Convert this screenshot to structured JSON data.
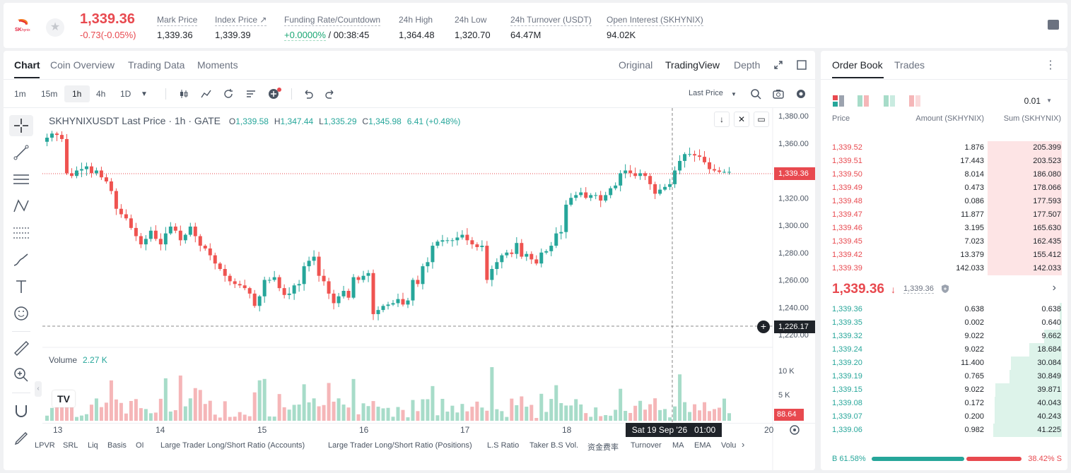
{
  "header": {
    "last_price": "1,339.36",
    "change": "-0.73(-0.05%)",
    "stats": [
      {
        "label": "Mark Price",
        "value": "1,339.36"
      },
      {
        "label": "Index Price ↗",
        "value": "1,339.39"
      },
      {
        "label": "Funding Rate/Countdown",
        "value_green": "+0.0000%",
        "value": " / 00:38:45"
      },
      {
        "label": "24h High",
        "value": "1,364.48"
      },
      {
        "label": "24h Low",
        "value": "1,320.70"
      },
      {
        "label": "24h Turnover (USDT)",
        "value": "64.47M"
      },
      {
        "label": "Open Interest (SKHYNIX)",
        "value": "94.02K"
      }
    ]
  },
  "chart_tabs": [
    "Chart",
    "Coin Overview",
    "Trading Data",
    "Moments"
  ],
  "view_tabs": [
    "Original",
    "TradingView",
    "Depth"
  ],
  "timeframes": [
    "1m",
    "15m",
    "1h",
    "4h",
    "1D"
  ],
  "last_price_select": "Last Price",
  "legend": {
    "title": "SKHYNIXUSDT Last Price · 1h · GATE",
    "o_label": "O",
    "o": "1,339.58",
    "h_label": "H",
    "h": "1,347.44",
    "l_label": "L",
    "l": "1,335.29",
    "c_label": "C",
    "c": "1,345.98",
    "chg": "6.41 (+0.48%)"
  },
  "volume": {
    "label": "Volume",
    "value": "2.27 K",
    "tag": "88.64",
    "ticks": [
      "10 K",
      "5 K"
    ]
  },
  "price_axis": [
    "1,380.00",
    "1,360.00",
    "1,340.00",
    "1,320.00",
    "1,300.00",
    "1,280.00",
    "1,260.00",
    "1,240.00",
    "1,220.00"
  ],
  "price_tag": "1,339.36",
  "cross_tag": "1,226.17",
  "x_axis": [
    "13",
    "14",
    "15",
    "16",
    "17",
    "18",
    "20"
  ],
  "x_tooltip": "Sat 19 Sep '26   01:00",
  "indicators": [
    "LPVR",
    "SRL",
    "Liq",
    "Basis",
    "OI",
    "Large Trader Long/Short Ratio (Accounts)",
    "Large Trader Long/Short Ratio (Positions)",
    "L.S Ratio",
    "Taker B.S Vol.",
    "资金费率",
    "Turnover",
    "MA",
    "EMA",
    "Volu"
  ],
  "book_tabs": [
    "Order Book",
    "Trades"
  ],
  "book": {
    "precision": "0.01",
    "cols": [
      "Price",
      "Amount (SKHYNIX)",
      "Sum (SKHYNIX)"
    ],
    "asks": [
      [
        "1,339.52",
        "1.876",
        "205.399"
      ],
      [
        "1,339.51",
        "17.443",
        "203.523"
      ],
      [
        "1,339.50",
        "8.014",
        "186.080"
      ],
      [
        "1,339.49",
        "0.473",
        "178.066"
      ],
      [
        "1,339.48",
        "0.086",
        "177.593"
      ],
      [
        "1,339.47",
        "11.877",
        "177.507"
      ],
      [
        "1,339.46",
        "3.195",
        "165.630"
      ],
      [
        "1,339.45",
        "7.023",
        "162.435"
      ],
      [
        "1,339.42",
        "13.379",
        "155.412"
      ],
      [
        "1,339.39",
        "142.033",
        "142.033"
      ]
    ],
    "mid": "1,339.36",
    "mid_arrow": "↓",
    "mark": "1,339.36",
    "bids": [
      [
        "1,339.36",
        "0.638",
        "0.638"
      ],
      [
        "1,339.35",
        "0.002",
        "0.640"
      ],
      [
        "1,339.32",
        "9.022",
        "9.662"
      ],
      [
        "1,339.24",
        "9.022",
        "18.684"
      ],
      [
        "1,339.20",
        "11.400",
        "30.084"
      ],
      [
        "1,339.19",
        "0.765",
        "30.849"
      ],
      [
        "1,339.15",
        "9.022",
        "39.871"
      ],
      [
        "1,339.08",
        "0.172",
        "40.043"
      ],
      [
        "1,339.07",
        "0.200",
        "40.243"
      ],
      [
        "1,339.06",
        "0.982",
        "41.225"
      ]
    ],
    "buy": "B 61.58%",
    "sell": "38.42% S",
    "buy_ratio": 0.6158
  },
  "chart_data": {
    "type": "candlestick",
    "symbol": "SKHYNIXUSDT",
    "interval": "1h",
    "ylim": [
      1220,
      1380
    ],
    "up_color": "#26a69a",
    "down_color": "#ef5350",
    "closes": [
      1364,
      1367,
      1366,
      1363,
      1338,
      1336,
      1340,
      1341,
      1343,
      1338,
      1340,
      1335,
      1332,
      1325,
      1312,
      1308,
      1305,
      1298,
      1292,
      1286,
      1290,
      1296,
      1290,
      1286,
      1294,
      1299,
      1296,
      1289,
      1293,
      1299,
      1292,
      1285,
      1283,
      1278,
      1272,
      1268,
      1263,
      1259,
      1257,
      1256,
      1254,
      1250,
      1241,
      1248,
      1260,
      1260,
      1262,
      1254,
      1249,
      1250,
      1256,
      1257,
      1270,
      1274,
      1277,
      1263,
      1259,
      1250,
      1243,
      1248,
      1252,
      1247,
      1262,
      1260,
      1263,
      1265,
      1235,
      1238,
      1241,
      1242,
      1243,
      1246,
      1242,
      1245,
      1260,
      1257,
      1270,
      1273,
      1285,
      1288,
      1289,
      1289,
      1289,
      1291,
      1293,
      1289,
      1286,
      1284,
      1285,
      1260,
      1268,
      1273,
      1278,
      1280,
      1279,
      1287,
      1277,
      1279,
      1275,
      1272,
      1280,
      1281,
      1285,
      1294,
      1295,
      1315,
      1320,
      1322,
      1324,
      1320,
      1322,
      1322,
      1318,
      1322,
      1327,
      1329,
      1338,
      1340,
      1338,
      1336,
      1338,
      1336,
      1330,
      1323,
      1326,
      1328,
      1330,
      1340,
      1347,
      1352,
      1352,
      1351,
      1350,
      1346,
      1341,
      1340,
      1339,
      1339,
      1339
    ]
  }
}
